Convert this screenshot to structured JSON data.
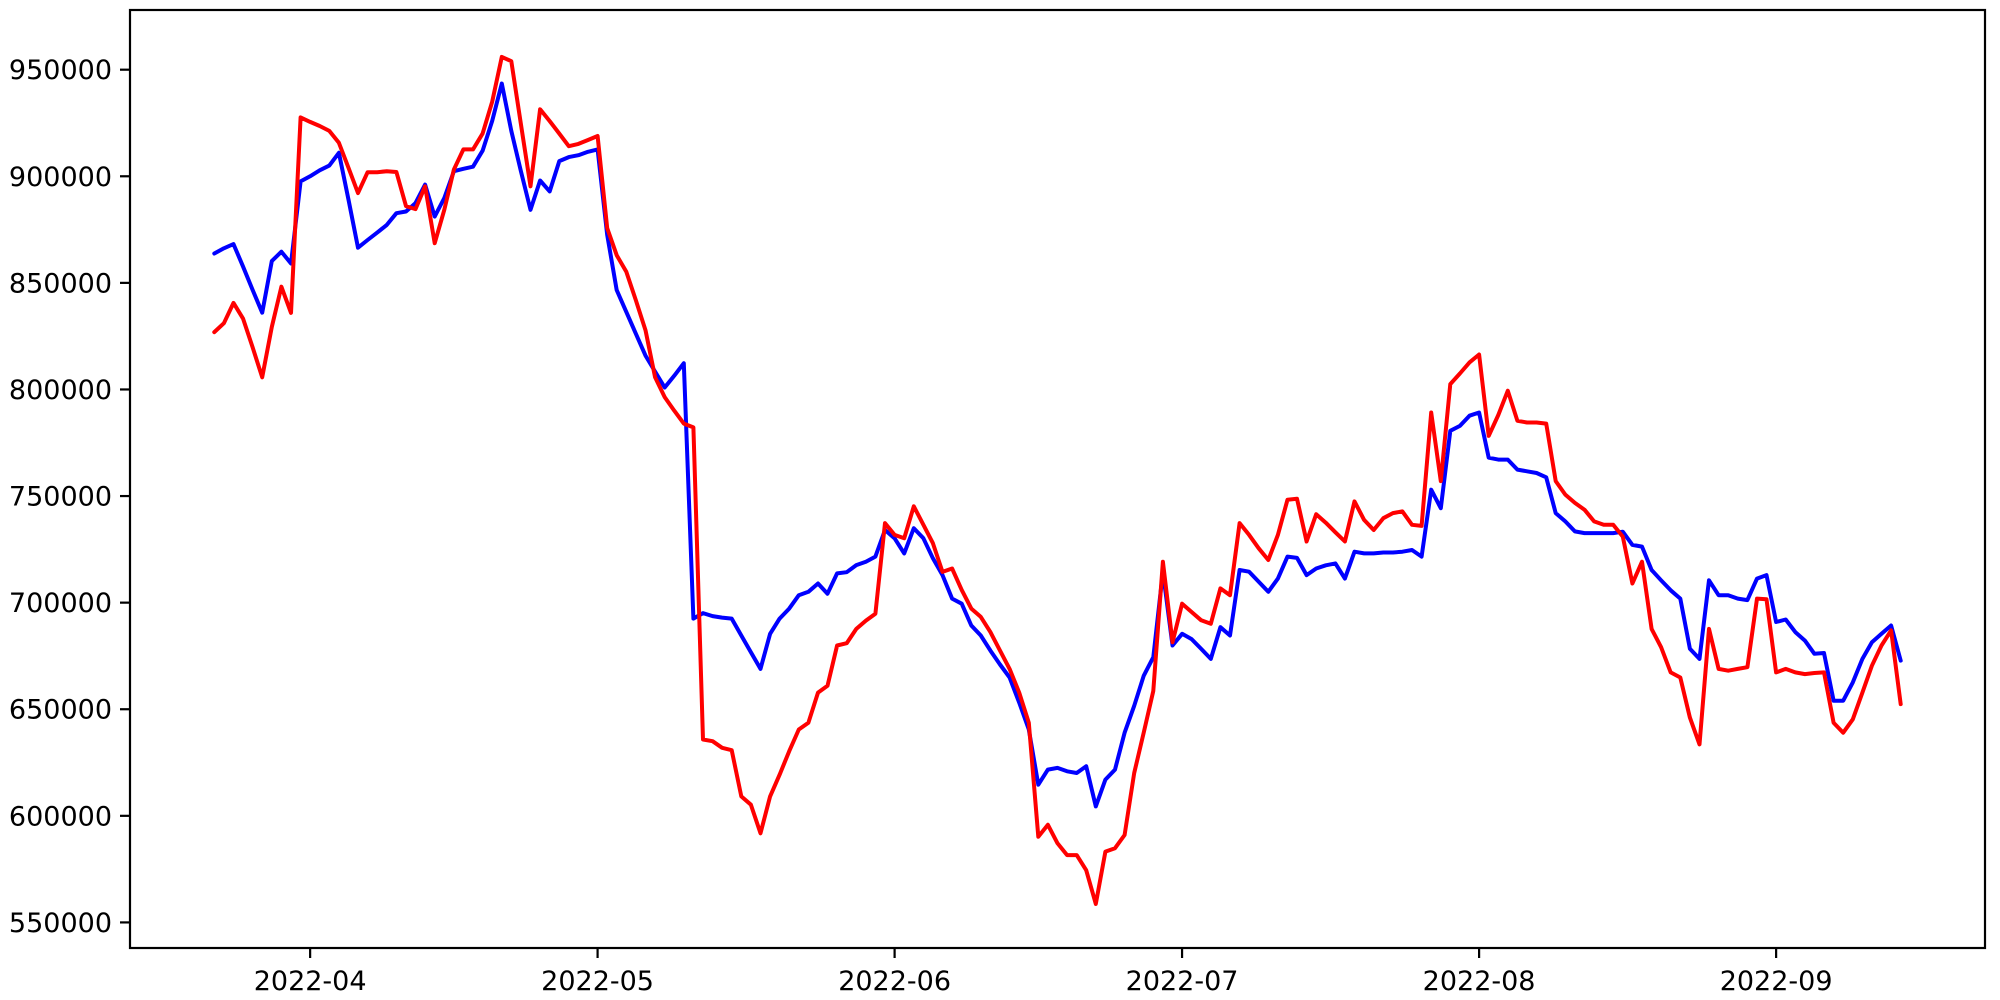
{
  "figure": {
    "background_color": "#ffffff",
    "frame_color": "#000000",
    "title": ""
  },
  "chart_data": {
    "type": "line",
    "title": "",
    "xlabel": "",
    "ylabel": "",
    "grid": false,
    "legend": null,
    "x_start_date": "2022-03-22",
    "x_frequency": "daily",
    "x_tick_labels": [
      "2022-04",
      "2022-05",
      "2022-06",
      "2022-07",
      "2022-08",
      "2022-09"
    ],
    "x_ticks": [
      {
        "label": "2022-04",
        "day_index": 10
      },
      {
        "label": "2022-05",
        "day_index": 40
      },
      {
        "label": "2022-06",
        "day_index": 71
      },
      {
        "label": "2022-07",
        "day_index": 101
      },
      {
        "label": "2022-08",
        "day_index": 132
      },
      {
        "label": "2022-09",
        "day_index": 163
      }
    ],
    "y_tick_labels": [
      "550000",
      "600000",
      "650000",
      "700000",
      "750000",
      "800000",
      "850000",
      "900000",
      "950000"
    ],
    "y_ticks": [
      550000,
      600000,
      650000,
      700000,
      750000,
      800000,
      850000,
      900000,
      950000
    ],
    "ylim": [
      538000,
      978000
    ],
    "x_margin_days": 8.8,
    "series": [
      {
        "name": "blue",
        "color": "#0000ff",
        "values": [
          863800,
          866200,
          868200,
          857600,
          846700,
          836000,
          860200,
          864600,
          859100,
          897600,
          900000,
          902800,
          905000,
          911000,
          889000,
          866500,
          870100,
          873600,
          877200,
          882700,
          883500,
          887400,
          896100,
          881100,
          889800,
          902400,
          903500,
          904500,
          912000,
          926000,
          943500,
          921300,
          902400,
          884300,
          898000,
          892900,
          907100,
          909000,
          909900,
          911500,
          912600,
          872500,
          846600,
          836400,
          826100,
          815900,
          808400,
          800900,
          806400,
          812300,
          692500,
          695100,
          693700,
          693000,
          692500,
          684600,
          676700,
          668900,
          685400,
          692500,
          697200,
          703500,
          705100,
          709000,
          704200,
          713700,
          714300,
          717600,
          719200,
          721600,
          734100,
          730200,
          723100,
          734900,
          730200,
          720800,
          712900,
          701900,
          699500,
          689300,
          684600,
          677500,
          671000,
          664900,
          653100,
          640500,
          614600,
          621700,
          622500,
          620900,
          620100,
          623300,
          604400,
          617000,
          621700,
          639000,
          651600,
          665700,
          674400,
          714500,
          679900,
          685400,
          682900,
          678300,
          673600,
          688500,
          684600,
          715300,
          714500,
          709800,
          705100,
          711300,
          721600,
          721000,
          712900,
          716000,
          717500,
          718400,
          711300,
          723900,
          723100,
          723100,
          723500,
          723500,
          723900,
          724700,
          721600,
          753000,
          744300,
          780600,
          782900,
          787700,
          789200,
          768000,
          767100,
          767100,
          762400,
          761600,
          760800,
          758800,
          742000,
          738100,
          733400,
          732600,
          732600,
          732600,
          732600,
          733300,
          727100,
          726300,
          715300,
          710500,
          705800,
          701900,
          678400,
          673600,
          710500,
          703500,
          703500,
          701900,
          701200,
          711300,
          712900,
          690900,
          692100,
          686200,
          682200,
          676000,
          676400,
          654000,
          654000,
          662600,
          673600,
          681400,
          685400,
          689300,
          672800
        ]
      },
      {
        "name": "red",
        "color": "#ff0000",
        "values": [
          826900,
          831100,
          840600,
          833200,
          819800,
          805700,
          829300,
          848200,
          835900,
          927600,
          925500,
          923600,
          921300,
          915700,
          904000,
          892100,
          901900,
          901900,
          902400,
          902000,
          886000,
          884600,
          895300,
          868600,
          884300,
          903200,
          912600,
          912600,
          920000,
          935000,
          956000,
          954000,
          924500,
          895300,
          931400,
          925900,
          920000,
          914100,
          915200,
          917000,
          918900,
          875700,
          863000,
          855200,
          841800,
          827800,
          805700,
          796400,
          790100,
          784000,
          782200,
          635800,
          635000,
          631900,
          630800,
          609100,
          605200,
          591800,
          609100,
          619300,
          630300,
          640500,
          643700,
          657800,
          661000,
          679900,
          681000,
          687700,
          691600,
          694800,
          737300,
          731800,
          730200,
          745200,
          736500,
          727900,
          714400,
          716000,
          706000,
          697200,
          693300,
          686200,
          677500,
          668900,
          657800,
          643700,
          590200,
          595800,
          587100,
          581600,
          581600,
          574500,
          558700,
          583200,
          584800,
          591000,
          620100,
          639000,
          658600,
          719200,
          681400,
          699500,
          695600,
          691700,
          690100,
          706700,
          703500,
          737300,
          731800,
          725500,
          720000,
          731800,
          748300,
          748700,
          728700,
          741500,
          737500,
          733000,
          728700,
          747500,
          738800,
          734100,
          739600,
          742000,
          742800,
          736500,
          736000,
          789200,
          757000,
          802500,
          807500,
          812700,
          816400,
          778200,
          788000,
          799400,
          785300,
          784500,
          784500,
          784000,
          757000,
          750700,
          746800,
          743600,
          738100,
          736500,
          736500,
          731000,
          709000,
          719200,
          687700,
          679100,
          667300,
          664900,
          646100,
          633500,
          687700,
          668900,
          668100,
          668900,
          669700,
          701900,
          701600,
          667300,
          668900,
          667300,
          666500,
          667000,
          667300,
          643700,
          639000,
          645300,
          657800,
          670400,
          679900,
          687000,
          652400
        ]
      }
    ]
  }
}
